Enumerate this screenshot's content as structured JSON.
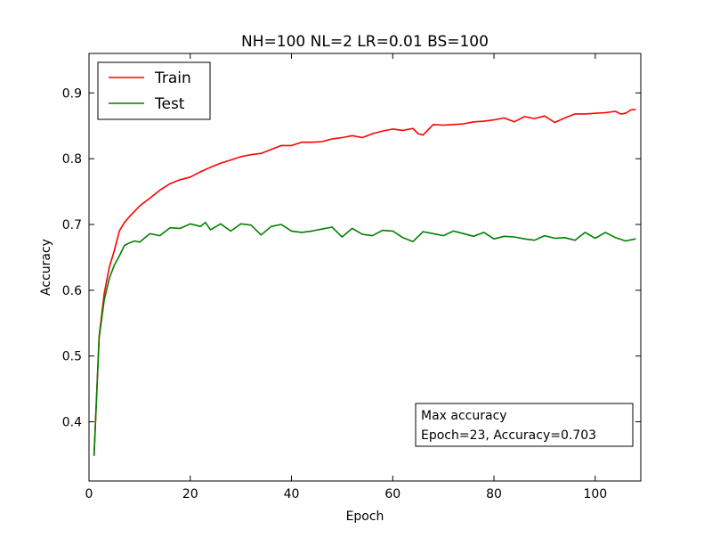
{
  "chart_data": {
    "type": "line",
    "title": "NH=100 NL=2 LR=0.01 BS=100",
    "xlabel": "Epoch",
    "ylabel": "Accuracy",
    "xlim": [
      0,
      109
    ],
    "ylim": [
      0.31,
      0.96
    ],
    "xticks": [
      0,
      20,
      40,
      60,
      80,
      100
    ],
    "xtick_labels": [
      "0",
      "20",
      "40",
      "60",
      "80",
      "100"
    ],
    "yticks": [
      0.4,
      0.5,
      0.6,
      0.7,
      0.8,
      0.9
    ],
    "ytick_labels": [
      "0.4",
      "0.5",
      "0.6",
      "0.7",
      "0.8",
      "0.9"
    ],
    "grid": false,
    "legend": "top-left",
    "series": [
      {
        "name": "Train",
        "color": "#ff0000",
        "points": [
          [
            1,
            0.35
          ],
          [
            2,
            0.53
          ],
          [
            3,
            0.595
          ],
          [
            4,
            0.635
          ],
          [
            5,
            0.66
          ],
          [
            6,
            0.69
          ],
          [
            7,
            0.703
          ],
          [
            8,
            0.712
          ],
          [
            9,
            0.72
          ],
          [
            10,
            0.728
          ],
          [
            12,
            0.74
          ],
          [
            14,
            0.752
          ],
          [
            16,
            0.762
          ],
          [
            18,
            0.768
          ],
          [
            20,
            0.772
          ],
          [
            22,
            0.78
          ],
          [
            24,
            0.787
          ],
          [
            26,
            0.793
          ],
          [
            28,
            0.798
          ],
          [
            30,
            0.803
          ],
          [
            32,
            0.806
          ],
          [
            34,
            0.808
          ],
          [
            36,
            0.814
          ],
          [
            38,
            0.82
          ],
          [
            40,
            0.82
          ],
          [
            42,
            0.825
          ],
          [
            44,
            0.825
          ],
          [
            46,
            0.826
          ],
          [
            48,
            0.83
          ],
          [
            50,
            0.832
          ],
          [
            52,
            0.835
          ],
          [
            54,
            0.832
          ],
          [
            56,
            0.838
          ],
          [
            58,
            0.842
          ],
          [
            60,
            0.845
          ],
          [
            62,
            0.843
          ],
          [
            64,
            0.846
          ],
          [
            65,
            0.838
          ],
          [
            66,
            0.836
          ],
          [
            68,
            0.852
          ],
          [
            70,
            0.851
          ],
          [
            72,
            0.852
          ],
          [
            74,
            0.853
          ],
          [
            76,
            0.856
          ],
          [
            78,
            0.857
          ],
          [
            80,
            0.859
          ],
          [
            82,
            0.862
          ],
          [
            84,
            0.856
          ],
          [
            86,
            0.864
          ],
          [
            88,
            0.861
          ],
          [
            90,
            0.865
          ],
          [
            92,
            0.855
          ],
          [
            94,
            0.862
          ],
          [
            96,
            0.868
          ],
          [
            98,
            0.868
          ],
          [
            100,
            0.869
          ],
          [
            102,
            0.87
          ],
          [
            104,
            0.872
          ],
          [
            105,
            0.868
          ],
          [
            106,
            0.869
          ],
          [
            107,
            0.874
          ],
          [
            108,
            0.875
          ]
        ]
      },
      {
        "name": "Test",
        "color": "#008000",
        "points": [
          [
            1,
            0.348
          ],
          [
            2,
            0.528
          ],
          [
            3,
            0.585
          ],
          [
            4,
            0.618
          ],
          [
            5,
            0.638
          ],
          [
            6,
            0.652
          ],
          [
            7,
            0.668
          ],
          [
            8,
            0.672
          ],
          [
            9,
            0.675
          ],
          [
            10,
            0.673
          ],
          [
            12,
            0.686
          ],
          [
            14,
            0.683
          ],
          [
            16,
            0.695
          ],
          [
            18,
            0.694
          ],
          [
            20,
            0.701
          ],
          [
            22,
            0.697
          ],
          [
            23,
            0.703
          ],
          [
            24,
            0.692
          ],
          [
            26,
            0.701
          ],
          [
            28,
            0.69
          ],
          [
            30,
            0.701
          ],
          [
            32,
            0.699
          ],
          [
            34,
            0.684
          ],
          [
            36,
            0.697
          ],
          [
            38,
            0.7
          ],
          [
            40,
            0.69
          ],
          [
            42,
            0.688
          ],
          [
            44,
            0.69
          ],
          [
            46,
            0.693
          ],
          [
            48,
            0.696
          ],
          [
            50,
            0.681
          ],
          [
            52,
            0.694
          ],
          [
            54,
            0.685
          ],
          [
            56,
            0.683
          ],
          [
            58,
            0.691
          ],
          [
            60,
            0.69
          ],
          [
            62,
            0.68
          ],
          [
            64,
            0.674
          ],
          [
            66,
            0.689
          ],
          [
            68,
            0.686
          ],
          [
            70,
            0.683
          ],
          [
            72,
            0.69
          ],
          [
            74,
            0.686
          ],
          [
            76,
            0.682
          ],
          [
            78,
            0.688
          ],
          [
            80,
            0.678
          ],
          [
            82,
            0.682
          ],
          [
            84,
            0.681
          ],
          [
            86,
            0.678
          ],
          [
            88,
            0.676
          ],
          [
            90,
            0.683
          ],
          [
            92,
            0.679
          ],
          [
            94,
            0.68
          ],
          [
            96,
            0.676
          ],
          [
            98,
            0.688
          ],
          [
            100,
            0.679
          ],
          [
            102,
            0.688
          ],
          [
            104,
            0.68
          ],
          [
            106,
            0.675
          ],
          [
            108,
            0.678
          ]
        ]
      }
    ],
    "annotation": {
      "lines": [
        "Max accuracy",
        "Epoch=23, Accuracy=0.703"
      ]
    }
  }
}
